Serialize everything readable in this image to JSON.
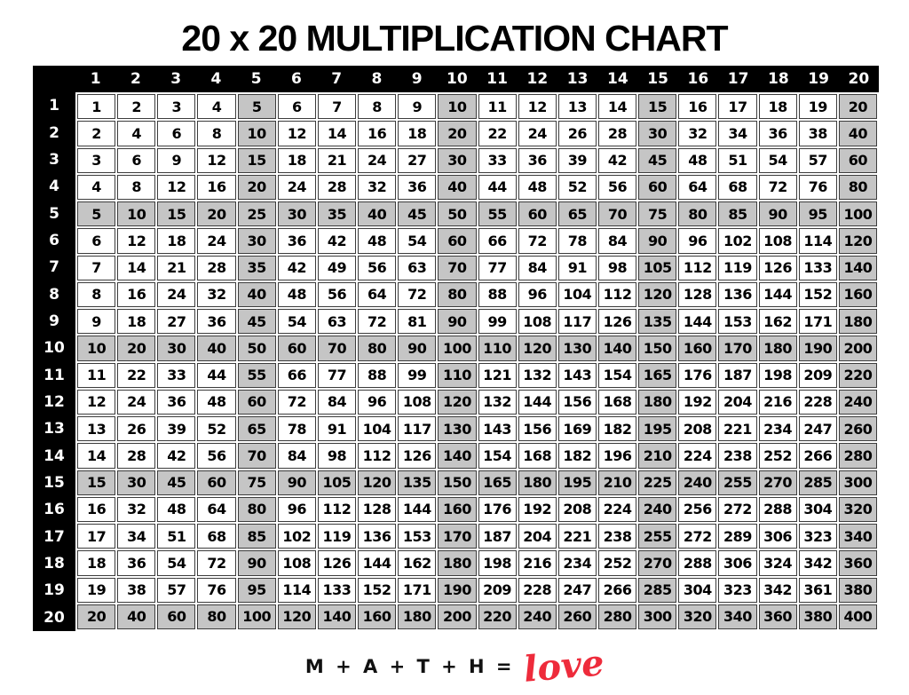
{
  "page": {
    "title": "20 x 20 MULTIPLICATION CHART",
    "footer": {
      "equation": "M + A + T + H =",
      "love_word": "love"
    }
  },
  "colors": {
    "header_band_bg": "#000000",
    "header_text": "#ffffff",
    "cell_bg": "#ffffff",
    "shaded_cell_bg": "#c5c5c5",
    "cell_border": "#3c3c3c",
    "title_text": "#000000",
    "love_red": "#ee2b3b"
  },
  "chart_data": {
    "type": "table",
    "title": "20 x 20 MULTIPLICATION CHART",
    "col_headers": [
      1,
      2,
      3,
      4,
      5,
      6,
      7,
      8,
      9,
      10,
      11,
      12,
      13,
      14,
      15,
      16,
      17,
      18,
      19,
      20
    ],
    "row_headers": [
      1,
      2,
      3,
      4,
      5,
      6,
      7,
      8,
      9,
      10,
      11,
      12,
      13,
      14,
      15,
      16,
      17,
      18,
      19,
      20
    ],
    "rows": [
      [
        1,
        2,
        3,
        4,
        5,
        6,
        7,
        8,
        9,
        10,
        11,
        12,
        13,
        14,
        15,
        16,
        17,
        18,
        19,
        20
      ],
      [
        2,
        4,
        6,
        8,
        10,
        12,
        14,
        16,
        18,
        20,
        22,
        24,
        26,
        28,
        30,
        32,
        34,
        36,
        38,
        40
      ],
      [
        3,
        6,
        9,
        12,
        15,
        18,
        21,
        24,
        27,
        30,
        33,
        36,
        39,
        42,
        45,
        48,
        51,
        54,
        57,
        60
      ],
      [
        4,
        8,
        12,
        16,
        20,
        24,
        28,
        32,
        36,
        40,
        44,
        48,
        52,
        56,
        60,
        64,
        68,
        72,
        76,
        80
      ],
      [
        5,
        10,
        15,
        20,
        25,
        30,
        35,
        40,
        45,
        50,
        55,
        60,
        65,
        70,
        75,
        80,
        85,
        90,
        95,
        100
      ],
      [
        6,
        12,
        18,
        24,
        30,
        36,
        42,
        48,
        54,
        60,
        66,
        72,
        78,
        84,
        90,
        96,
        102,
        108,
        114,
        120
      ],
      [
        7,
        14,
        21,
        28,
        35,
        42,
        49,
        56,
        63,
        70,
        77,
        84,
        91,
        98,
        105,
        112,
        119,
        126,
        133,
        140
      ],
      [
        8,
        16,
        24,
        32,
        40,
        48,
        56,
        64,
        72,
        80,
        88,
        96,
        104,
        112,
        120,
        128,
        136,
        144,
        152,
        160
      ],
      [
        9,
        18,
        27,
        36,
        45,
        54,
        63,
        72,
        81,
        90,
        99,
        108,
        117,
        126,
        135,
        144,
        153,
        162,
        171,
        180
      ],
      [
        10,
        20,
        30,
        40,
        50,
        60,
        70,
        80,
        90,
        100,
        110,
        120,
        130,
        140,
        150,
        160,
        170,
        180,
        190,
        200
      ],
      [
        11,
        22,
        33,
        44,
        55,
        66,
        77,
        88,
        99,
        110,
        121,
        132,
        143,
        154,
        165,
        176,
        187,
        198,
        209,
        220
      ],
      [
        12,
        24,
        36,
        48,
        60,
        72,
        84,
        96,
        108,
        120,
        132,
        144,
        156,
        168,
        180,
        192,
        204,
        216,
        228,
        240
      ],
      [
        13,
        26,
        39,
        52,
        65,
        78,
        91,
        104,
        117,
        130,
        143,
        156,
        169,
        182,
        195,
        208,
        221,
        234,
        247,
        260
      ],
      [
        14,
        28,
        42,
        56,
        70,
        84,
        98,
        112,
        126,
        140,
        154,
        168,
        182,
        196,
        210,
        224,
        238,
        252,
        266,
        280
      ],
      [
        15,
        30,
        45,
        60,
        75,
        90,
        105,
        120,
        135,
        150,
        165,
        180,
        195,
        210,
        225,
        240,
        255,
        270,
        285,
        300
      ],
      [
        16,
        32,
        48,
        64,
        80,
        96,
        112,
        128,
        144,
        160,
        176,
        192,
        208,
        224,
        240,
        256,
        272,
        288,
        304,
        320
      ],
      [
        17,
        34,
        51,
        68,
        85,
        102,
        119,
        136,
        153,
        170,
        187,
        204,
        221,
        238,
        255,
        272,
        289,
        306,
        323,
        340
      ],
      [
        18,
        36,
        54,
        72,
        90,
        108,
        126,
        144,
        162,
        180,
        198,
        216,
        234,
        252,
        270,
        288,
        306,
        324,
        342,
        360
      ],
      [
        19,
        38,
        57,
        76,
        95,
        114,
        133,
        152,
        171,
        190,
        209,
        228,
        247,
        266,
        285,
        304,
        323,
        342,
        361,
        380
      ],
      [
        20,
        40,
        60,
        80,
        100,
        120,
        140,
        160,
        180,
        200,
        220,
        240,
        260,
        280,
        300,
        320,
        340,
        360,
        380,
        400
      ]
    ],
    "shading": {
      "rule": "cells in rows or columns that are multiples of 5 have gray background",
      "multiple": 5
    },
    "layout": {
      "legend": "off",
      "grid": "on",
      "header_row_position": "top",
      "header_column_position": "left"
    }
  }
}
